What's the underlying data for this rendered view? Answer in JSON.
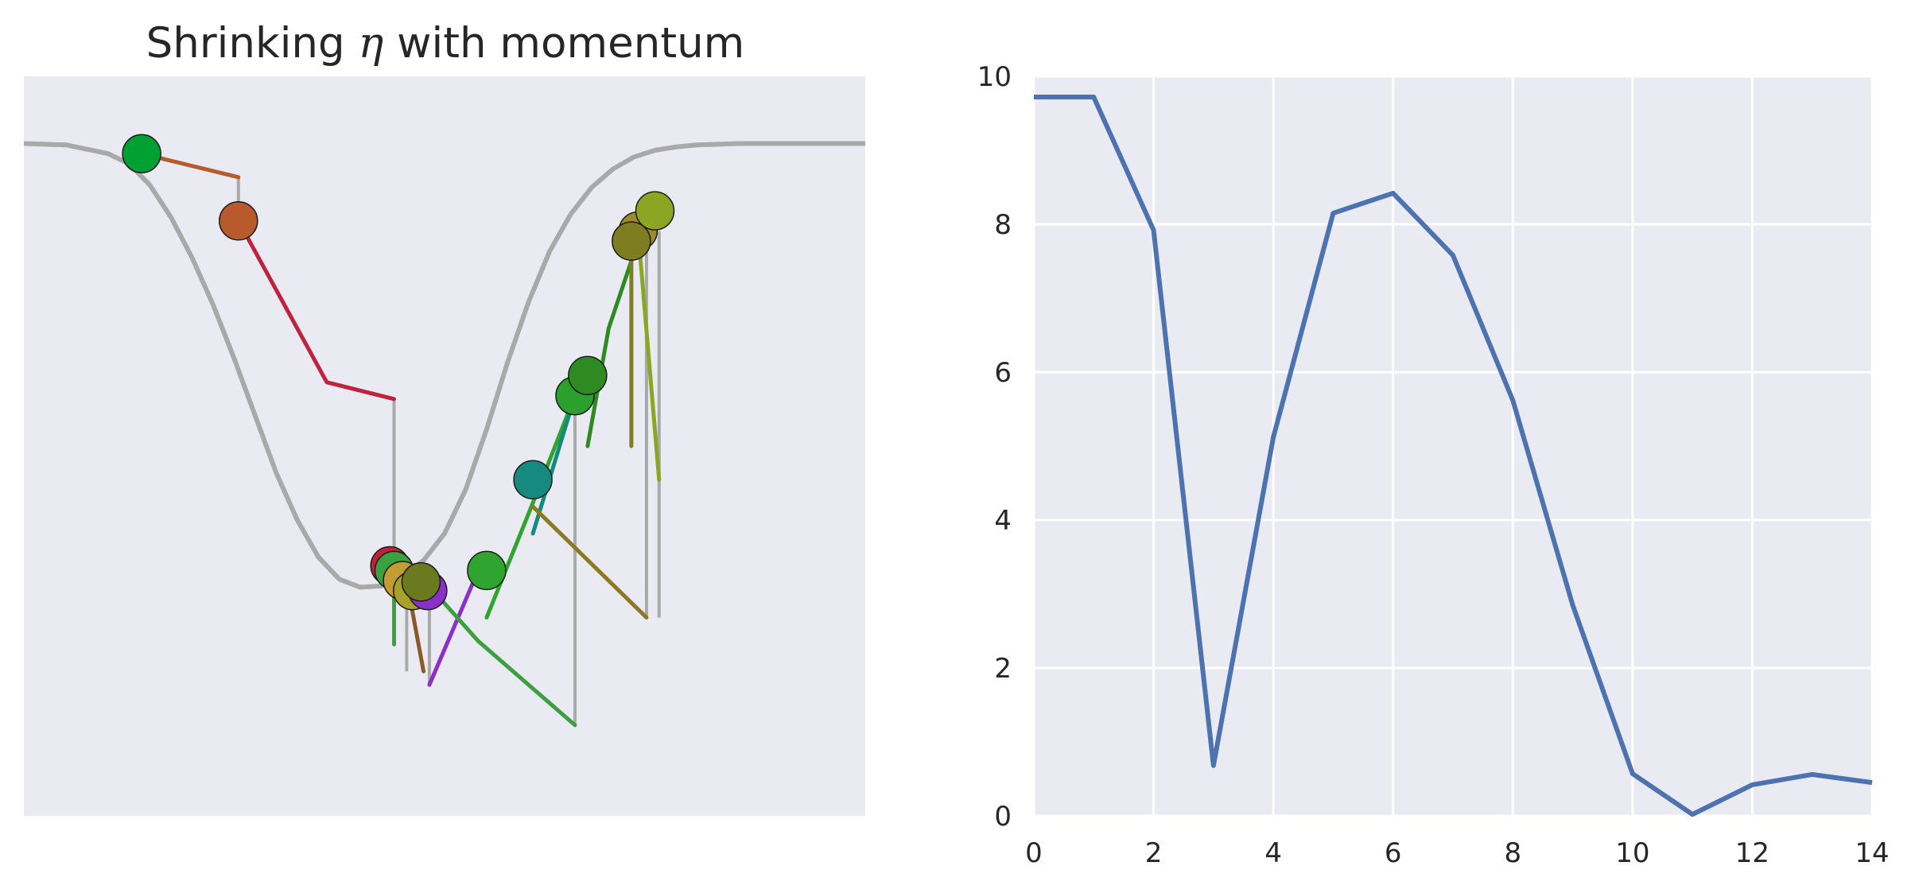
{
  "chart_data": [
    {
      "type": "line",
      "title": "Shrinking η with momentum",
      "title_prefix": "Shrinking",
      "title_symbol": "η",
      "title_suffix": "with momentum",
      "xlabel": "",
      "ylabel": "",
      "axes_visible": false,
      "grid": false,
      "background": "#eaeaf2",
      "curve_color": "#a9a9a9",
      "curve": {
        "x": [
          0.0,
          0.5,
          1.0,
          1.25,
          1.5,
          1.75,
          2.0,
          2.25,
          2.5,
          2.75,
          3.0,
          3.25,
          3.5,
          3.75,
          4.0,
          4.25,
          4.5,
          4.75,
          5.0,
          5.25,
          5.5,
          5.75,
          6.0,
          6.25,
          6.5,
          6.75,
          7.0,
          7.25,
          7.5,
          7.75,
          8.0,
          8.5,
          9.0,
          10.0
        ],
        "y": [
          10.0,
          9.98,
          9.85,
          9.7,
          9.38,
          8.9,
          8.3,
          7.6,
          6.8,
          5.95,
          5.1,
          4.4,
          3.85,
          3.52,
          3.4,
          3.42,
          3.55,
          3.8,
          4.2,
          4.85,
          5.75,
          6.75,
          7.65,
          8.4,
          8.95,
          9.35,
          9.62,
          9.8,
          9.9,
          9.95,
          9.98,
          10.0,
          10.0,
          10.0
        ]
      },
      "points": [
        {
          "x": 1.4,
          "y": 9.85,
          "color": "#00a032"
        },
        {
          "x": 2.55,
          "y": 8.85,
          "color": "#b85a2c"
        },
        {
          "x": 4.35,
          "y": 3.72,
          "color": "#c0223e"
        },
        {
          "x": 4.4,
          "y": 3.65,
          "color": "#3aa040"
        },
        {
          "x": 4.5,
          "y": 3.5,
          "color": "#c49c30"
        },
        {
          "x": 4.62,
          "y": 3.35,
          "color": "#a8a02a"
        },
        {
          "x": 4.8,
          "y": 3.35,
          "color": "#8b2fc9"
        },
        {
          "x": 4.72,
          "y": 3.48,
          "color": "#6b7a1f"
        },
        {
          "x": 5.5,
          "y": 3.65,
          "color": "#2fa52f"
        },
        {
          "x": 6.05,
          "y": 5.0,
          "color": "#178a80"
        },
        {
          "x": 6.55,
          "y": 6.25,
          "color": "#2ca02c"
        },
        {
          "x": 6.7,
          "y": 6.55,
          "color": "#2e8b22"
        },
        {
          "x": 7.3,
          "y": 8.7,
          "color": "#a08a28"
        },
        {
          "x": 7.22,
          "y": 8.55,
          "color": "#7e7e20"
        },
        {
          "x": 7.5,
          "y": 9.0,
          "color": "#8ca623"
        }
      ],
      "vertical_drops": [
        {
          "x": 2.55,
          "y0": 9.5,
          "y1": 8.85
        },
        {
          "x": 4.4,
          "y0": 6.2,
          "y1": 3.72
        },
        {
          "x": 4.55,
          "y0": 3.6,
          "y1": 2.15
        },
        {
          "x": 4.82,
          "y0": 3.45,
          "y1": 1.95
        },
        {
          "x": 6.55,
          "y0": 6.3,
          "y1": 1.35
        },
        {
          "x": 7.4,
          "y0": 8.5,
          "y1": 2.95
        },
        {
          "x": 7.55,
          "y0": 8.7,
          "y1": 2.95
        }
      ],
      "step_paths": [
        {
          "color": "#b85a2c",
          "x": [
            1.4,
            2.55
          ],
          "y": [
            9.85,
            9.5
          ]
        },
        {
          "color": "#c0223e",
          "x": [
            2.55,
            3.6,
            4.4
          ],
          "y": [
            8.85,
            6.45,
            6.2
          ]
        },
        {
          "color": "#3aa040",
          "x": [
            4.4,
            4.4
          ],
          "y": [
            3.72,
            2.55
          ]
        },
        {
          "color": "#8b5a2b",
          "x": [
            4.55,
            4.75
          ],
          "y": [
            3.5,
            2.15
          ]
        },
        {
          "color": "#8b2fc9",
          "x": [
            4.82,
            5.4
          ],
          "y": [
            1.95,
            3.65
          ]
        },
        {
          "color": "#3aa040",
          "x": [
            4.9,
            5.4,
            6.55
          ],
          "y": [
            3.3,
            2.6,
            1.35
          ]
        },
        {
          "color": "#2fa52f",
          "x": [
            5.5,
            6.0,
            6.55
          ],
          "y": [
            2.95,
            4.5,
            6.25
          ]
        },
        {
          "color": "#178a80",
          "x": [
            6.05,
            6.55
          ],
          "y": [
            4.2,
            6.25
          ]
        },
        {
          "color": "#8b7a22",
          "x": [
            6.05,
            7.4
          ],
          "y": [
            4.6,
            2.95
          ]
        },
        {
          "color": "#2e8b22",
          "x": [
            6.7,
            6.95,
            7.3
          ],
          "y": [
            5.5,
            7.25,
            8.55
          ]
        },
        {
          "color": "#8ca623",
          "x": [
            7.3,
            7.55
          ],
          "y": [
            8.7,
            5.0
          ]
        },
        {
          "color": "#7e7e20",
          "x": [
            7.22,
            7.22
          ],
          "y": [
            8.55,
            5.5
          ]
        }
      ],
      "xlim": [
        0,
        10
      ],
      "ylim": [
        0,
        11
      ]
    },
    {
      "type": "line",
      "title": "",
      "xlabel": "",
      "ylabel": "",
      "grid": true,
      "background": "#eaeaf2",
      "line_color": "#4c72b0",
      "x": [
        0,
        1,
        2,
        3,
        4,
        5,
        6,
        7,
        8,
        9,
        10,
        11,
        12,
        13,
        14
      ],
      "y": [
        9.72,
        9.72,
        7.92,
        0.68,
        5.12,
        8.15,
        8.42,
        7.58,
        5.62,
        2.85,
        0.57,
        0.02,
        0.42,
        0.56,
        0.45
      ],
      "xlim": [
        0,
        14
      ],
      "ylim": [
        0,
        10
      ],
      "xticks": [
        0,
        2,
        4,
        6,
        8,
        10,
        12,
        14
      ],
      "yticks": [
        0,
        2,
        4,
        6,
        8,
        10
      ]
    }
  ]
}
